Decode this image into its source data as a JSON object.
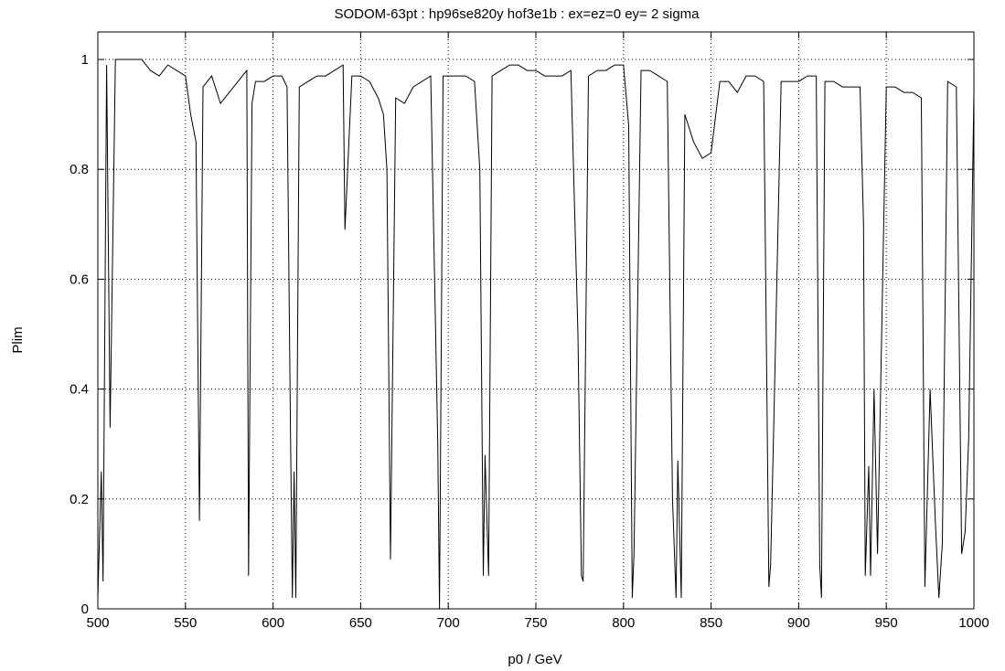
{
  "chart_data": {
    "type": "line",
    "title": "SODOM-63pt : hp96se820y hof3e1b : ex=ez=0 ey= 2 sigma",
    "xlabel": "p0 / GeV",
    "ylabel": "Plim",
    "xlim": [
      500,
      1000
    ],
    "ylim": [
      0,
      1.05
    ],
    "x_ticks": [
      500,
      550,
      600,
      650,
      700,
      750,
      800,
      850,
      900,
      950,
      1000
    ],
    "y_ticks": [
      0,
      0.2,
      0.4,
      0.6,
      0.8,
      1
    ],
    "x_tick_labels": [
      "500",
      "550",
      "600",
      "650",
      "700",
      "750",
      "800",
      "850",
      "900",
      "950",
      "1000"
    ],
    "y_tick_labels": [
      "0",
      "0.2",
      "0.4",
      "0.6",
      "0.8",
      "1"
    ],
    "grid": true,
    "line_color": "#000000",
    "series": [
      {
        "values_note_omitted": false,
        "x": [
          500,
          502,
          503,
          505,
          507,
          510,
          515,
          520,
          525,
          530,
          535,
          540,
          545,
          550,
          553,
          556,
          558,
          560,
          565,
          570,
          575,
          580,
          585,
          586,
          588,
          590,
          595,
          600,
          605,
          608,
          610,
          611,
          612,
          613,
          615,
          620,
          625,
          630,
          635,
          640,
          641,
          645,
          650,
          655,
          660,
          663,
          665,
          667,
          670,
          675,
          680,
          685,
          690,
          694,
          695,
          697,
          700,
          705,
          710,
          715,
          718,
          720,
          721,
          723,
          725,
          730,
          735,
          740,
          745,
          750,
          755,
          760,
          765,
          770,
          774,
          776,
          777,
          780,
          785,
          790,
          795,
          800,
          803,
          805,
          806,
          810,
          815,
          820,
          825,
          828,
          830,
          831,
          833,
          835,
          840,
          845,
          850,
          855,
          860,
          865,
          870,
          875,
          880,
          883,
          884,
          886,
          890,
          895,
          900,
          905,
          910,
          912,
          913,
          915,
          920,
          925,
          930,
          935,
          937,
          938,
          940,
          941,
          943,
          945,
          950,
          955,
          960,
          965,
          970,
          972,
          975,
          978,
          980,
          982,
          985,
          990,
          993,
          995,
          997,
          1000
        ],
        "y": [
          0.02,
          0.25,
          0.05,
          0.99,
          0.33,
          1.0,
          1.0,
          1.0,
          1.0,
          0.98,
          0.97,
          0.99,
          0.98,
          0.97,
          0.9,
          0.85,
          0.16,
          0.95,
          0.97,
          0.92,
          0.94,
          0.96,
          0.98,
          0.06,
          0.92,
          0.96,
          0.96,
          0.97,
          0.97,
          0.95,
          0.3,
          0.02,
          0.25,
          0.02,
          0.95,
          0.96,
          0.97,
          0.97,
          0.98,
          0.99,
          0.69,
          0.97,
          0.97,
          0.96,
          0.93,
          0.9,
          0.8,
          0.09,
          0.93,
          0.92,
          0.95,
          0.96,
          0.97,
          0.3,
          0.0,
          0.97,
          0.97,
          0.97,
          0.97,
          0.96,
          0.8,
          0.06,
          0.28,
          0.06,
          0.97,
          0.98,
          0.99,
          0.99,
          0.98,
          0.98,
          0.97,
          0.97,
          0.97,
          0.98,
          0.5,
          0.06,
          0.05,
          0.97,
          0.98,
          0.98,
          0.99,
          0.99,
          0.88,
          0.02,
          0.1,
          0.98,
          0.98,
          0.97,
          0.96,
          0.2,
          0.02,
          0.27,
          0.02,
          0.9,
          0.85,
          0.82,
          0.83,
          0.96,
          0.96,
          0.94,
          0.97,
          0.97,
          0.96,
          0.04,
          0.08,
          0.37,
          0.96,
          0.96,
          0.96,
          0.97,
          0.97,
          0.08,
          0.02,
          0.96,
          0.96,
          0.95,
          0.95,
          0.95,
          0.7,
          0.06,
          0.26,
          0.06,
          0.4,
          0.1,
          0.95,
          0.95,
          0.94,
          0.94,
          0.93,
          0.04,
          0.4,
          0.16,
          0.02,
          0.12,
          0.96,
          0.95,
          0.1,
          0.14,
          0.31,
          0.94
        ]
      }
    ]
  }
}
